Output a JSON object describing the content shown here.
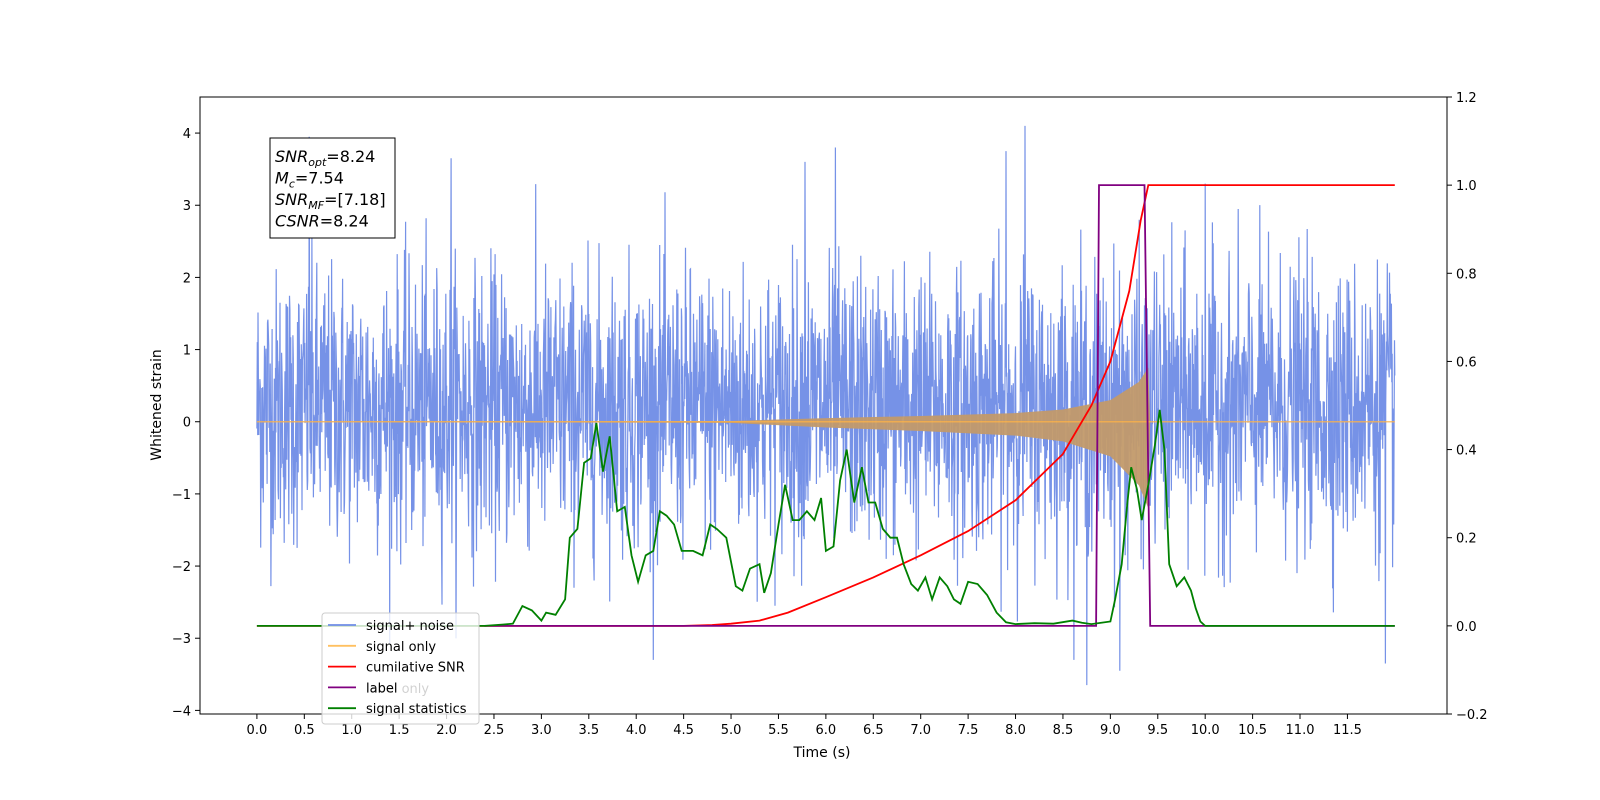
{
  "chart_data": {
    "type": "line",
    "xlabel": "Time (s)",
    "ylabel": "Whitened strain",
    "xlim": [
      -0.6,
      12.55
    ],
    "ylim": [
      -4.05,
      4.5
    ],
    "y2lim": [
      -0.2,
      1.2
    ],
    "xticks": [
      0.0,
      0.5,
      1.0,
      1.5,
      2.0,
      2.5,
      3.0,
      3.5,
      4.0,
      4.5,
      5.0,
      5.5,
      6.0,
      6.5,
      7.0,
      7.5,
      8.0,
      8.5,
      9.0,
      9.5,
      10.0,
      10.5,
      11.0,
      11.5
    ],
    "xtick_labels": [
      "0.0",
      "0.5",
      "1.0",
      "1.5",
      "2.0",
      "2.5",
      "3.0",
      "3.5",
      "4.0",
      "4.5",
      "5.0",
      "5.5",
      "6.0",
      "6.5",
      "7.0",
      "7.5",
      "8.0",
      "8.5",
      "9.0",
      "9.5",
      "10.0",
      "10.5",
      "11.0",
      "11.5"
    ],
    "yticks": [
      -4,
      -3,
      -2,
      -1,
      0,
      1,
      2,
      3,
      4
    ],
    "ytick_labels": [
      "−4",
      "−3",
      "−2",
      "−1",
      "0",
      "1",
      "2",
      "3",
      "4"
    ],
    "y2ticks": [
      -0.2,
      0.0,
      0.2,
      0.4,
      0.6,
      0.8,
      1.0,
      1.2
    ],
    "y2tick_labels": [
      "−0.2",
      "0.0",
      "0.2",
      "0.4",
      "0.6",
      "0.8",
      "1.0",
      "1.2"
    ],
    "grid": false,
    "legend_position": "lower-left",
    "annotation": {
      "lines": [
        {
          "main": "SNR",
          "sub": "opt",
          "rest": "=8.24"
        },
        {
          "main": "M",
          "sub": "c",
          "rest": "=7.54"
        },
        {
          "main": "SNR",
          "sub": "MF",
          "rest": "=[7.18]"
        },
        {
          "main": "CSNR",
          "sub": "",
          "rest": "=8.24"
        }
      ]
    },
    "series": [
      {
        "name": "signal+ noise",
        "axis": "left",
        "color": "#6f8ce6",
        "x_range": [
          0.0,
          12.0
        ],
        "typical_band": [
          -1.5,
          1.9
        ],
        "extremes": [
          {
            "x": 0.55,
            "y": 3.95
          },
          {
            "x": 2.05,
            "y": 3.65
          },
          {
            "x": 5.78,
            "y": 3.6
          },
          {
            "x": 6.1,
            "y": 3.8
          },
          {
            "x": 7.9,
            "y": 3.75
          },
          {
            "x": 8.1,
            "y": 4.1
          },
          {
            "x": 10.0,
            "y": 3.3
          },
          {
            "x": 8.75,
            "y": -3.65
          },
          {
            "x": 9.1,
            "y": -3.45
          },
          {
            "x": 11.9,
            "y": -3.35
          }
        ]
      },
      {
        "name": "signal only",
        "axis": "left",
        "color": "#ffb347",
        "envelope": [
          [
            0.0,
            0.0
          ],
          [
            5.0,
            0.01
          ],
          [
            6.0,
            0.05
          ],
          [
            7.0,
            0.08
          ],
          [
            8.0,
            0.12
          ],
          [
            8.5,
            0.17
          ],
          [
            9.0,
            0.3
          ],
          [
            9.3,
            0.55
          ],
          [
            9.4,
            0.75
          ],
          [
            9.42,
            0.0
          ],
          [
            12.0,
            0.0
          ]
        ]
      },
      {
        "name": "cumilative SNR",
        "axis": "right",
        "color": "#ff0000",
        "points": [
          [
            0.0,
            0.0
          ],
          [
            4.5,
            0.0
          ],
          [
            4.8,
            0.002
          ],
          [
            5.0,
            0.005
          ],
          [
            5.3,
            0.012
          ],
          [
            5.6,
            0.03
          ],
          [
            6.0,
            0.065
          ],
          [
            6.5,
            0.11
          ],
          [
            7.0,
            0.16
          ],
          [
            7.5,
            0.215
          ],
          [
            8.0,
            0.285
          ],
          [
            8.5,
            0.39
          ],
          [
            8.8,
            0.5
          ],
          [
            9.0,
            0.6
          ],
          [
            9.2,
            0.76
          ],
          [
            9.32,
            0.92
          ],
          [
            9.4,
            1.0
          ],
          [
            12.0,
            1.0
          ]
        ]
      },
      {
        "name": "label",
        "axis": "right",
        "color": "#800080",
        "points": [
          [
            2.4,
            0.0
          ],
          [
            8.85,
            0.0
          ],
          [
            8.88,
            1.0
          ],
          [
            9.36,
            1.0
          ],
          [
            9.42,
            0.0
          ],
          [
            12.0,
            0.0
          ]
        ]
      },
      {
        "name": "label only",
        "axis": "right",
        "color": "#800080",
        "points": []
      },
      {
        "name": "signal statistics",
        "axis": "right",
        "color": "#008000",
        "points": [
          [
            0.0,
            0.0
          ],
          [
            2.4,
            0.0
          ],
          [
            2.6,
            0.003
          ],
          [
            2.7,
            0.005
          ],
          [
            2.8,
            0.045
          ],
          [
            2.9,
            0.035
          ],
          [
            3.0,
            0.012
          ],
          [
            3.05,
            0.03
          ],
          [
            3.15,
            0.025
          ],
          [
            3.25,
            0.06
          ],
          [
            3.3,
            0.2
          ],
          [
            3.38,
            0.22
          ],
          [
            3.45,
            0.37
          ],
          [
            3.52,
            0.38
          ],
          [
            3.58,
            0.46
          ],
          [
            3.65,
            0.35
          ],
          [
            3.72,
            0.43
          ],
          [
            3.8,
            0.26
          ],
          [
            3.88,
            0.27
          ],
          [
            3.95,
            0.16
          ],
          [
            4.02,
            0.1
          ],
          [
            4.1,
            0.16
          ],
          [
            4.18,
            0.17
          ],
          [
            4.25,
            0.26
          ],
          [
            4.32,
            0.25
          ],
          [
            4.4,
            0.23
          ],
          [
            4.48,
            0.17
          ],
          [
            4.6,
            0.17
          ],
          [
            4.7,
            0.16
          ],
          [
            4.78,
            0.23
          ],
          [
            4.85,
            0.22
          ],
          [
            4.95,
            0.2
          ],
          [
            5.05,
            0.09
          ],
          [
            5.12,
            0.08
          ],
          [
            5.2,
            0.13
          ],
          [
            5.3,
            0.14
          ],
          [
            5.35,
            0.075
          ],
          [
            5.42,
            0.12
          ],
          [
            5.5,
            0.23
          ],
          [
            5.57,
            0.32
          ],
          [
            5.65,
            0.24
          ],
          [
            5.72,
            0.24
          ],
          [
            5.8,
            0.26
          ],
          [
            5.88,
            0.24
          ],
          [
            5.95,
            0.29
          ],
          [
            6.0,
            0.17
          ],
          [
            6.08,
            0.18
          ],
          [
            6.15,
            0.33
          ],
          [
            6.22,
            0.4
          ],
          [
            6.3,
            0.28
          ],
          [
            6.38,
            0.36
          ],
          [
            6.45,
            0.28
          ],
          [
            6.52,
            0.28
          ],
          [
            6.6,
            0.22
          ],
          [
            6.68,
            0.2
          ],
          [
            6.75,
            0.2
          ],
          [
            6.82,
            0.14
          ],
          [
            6.9,
            0.095
          ],
          [
            6.97,
            0.08
          ],
          [
            7.05,
            0.11
          ],
          [
            7.12,
            0.06
          ],
          [
            7.2,
            0.11
          ],
          [
            7.28,
            0.09
          ],
          [
            7.35,
            0.06
          ],
          [
            7.42,
            0.05
          ],
          [
            7.5,
            0.1
          ],
          [
            7.6,
            0.095
          ],
          [
            7.7,
            0.07
          ],
          [
            7.8,
            0.03
          ],
          [
            7.9,
            0.008
          ],
          [
            8.0,
            0.004
          ],
          [
            8.2,
            0.006
          ],
          [
            8.4,
            0.005
          ],
          [
            8.6,
            0.012
          ],
          [
            8.7,
            0.007
          ],
          [
            8.8,
            0.004
          ],
          [
            9.0,
            0.01
          ],
          [
            9.05,
            0.06
          ],
          [
            9.12,
            0.14
          ],
          [
            9.18,
            0.28
          ],
          [
            9.22,
            0.36
          ],
          [
            9.28,
            0.31
          ],
          [
            9.33,
            0.24
          ],
          [
            9.4,
            0.32
          ],
          [
            9.47,
            0.41
          ],
          [
            9.52,
            0.49
          ],
          [
            9.57,
            0.4
          ],
          [
            9.62,
            0.14
          ],
          [
            9.7,
            0.09
          ],
          [
            9.78,
            0.11
          ],
          [
            9.85,
            0.08
          ],
          [
            9.9,
            0.04
          ],
          [
            9.95,
            0.01
          ],
          [
            10.0,
            0.0
          ],
          [
            12.0,
            0.0
          ]
        ]
      }
    ]
  }
}
